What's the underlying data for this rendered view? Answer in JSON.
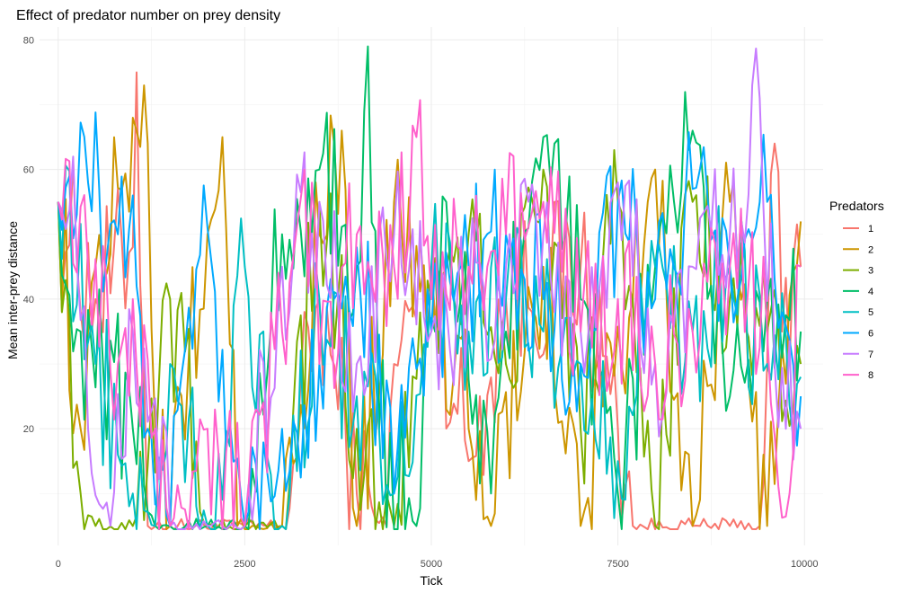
{
  "chart_data": {
    "type": "line",
    "title": "Effect of predator number on prey density",
    "xlabel": "Tick",
    "ylabel": "Mean inter-prey distance",
    "xlim": [
      -250,
      10250
    ],
    "ylim": [
      2,
      82
    ],
    "x_ticks": [
      0,
      2500,
      5000,
      7500,
      10000
    ],
    "x_tick_labels": [
      "0",
      "2500",
      "5000",
      "7500",
      "10000"
    ],
    "y_ticks": [
      20,
      40,
      60,
      80
    ],
    "y_tick_labels": [
      "20",
      "40",
      "60",
      "80"
    ],
    "grid": true,
    "legend": {
      "title": "Predators",
      "position": "right"
    },
    "x_sample_step": 50,
    "series": [
      {
        "name": "1",
        "color": "#F8766D",
        "segments": [
          [
            0,
            55
          ],
          [
            500,
            40
          ],
          [
            1000,
            48
          ],
          [
            1050,
            75
          ],
          [
            1200,
            5
          ],
          [
            1500,
            5
          ],
          [
            2500,
            5
          ],
          [
            3000,
            5
          ],
          [
            3500,
            40
          ],
          [
            4000,
            10
          ],
          [
            4400,
            5
          ],
          [
            4500,
            30
          ],
          [
            5000,
            45
          ],
          [
            5500,
            15
          ],
          [
            6000,
            40
          ],
          [
            7000,
            45
          ],
          [
            7500,
            20
          ],
          [
            7700,
            5
          ],
          [
            8500,
            5
          ],
          [
            9000,
            5
          ],
          [
            9400,
            5
          ],
          [
            9600,
            64
          ],
          [
            9700,
            35
          ],
          [
            9950,
            45
          ]
        ]
      },
      {
        "name": "2",
        "color": "#CD9600",
        "segments": [
          [
            0,
            55
          ],
          [
            300,
            20
          ],
          [
            500,
            45
          ],
          [
            1000,
            68
          ],
          [
            1200,
            64
          ],
          [
            1300,
            20
          ],
          [
            1500,
            5
          ],
          [
            2000,
            50
          ],
          [
            2200,
            65
          ],
          [
            2400,
            5
          ],
          [
            3000,
            5
          ],
          [
            3500,
            50
          ],
          [
            3800,
            66
          ],
          [
            4000,
            5
          ],
          [
            4500,
            55
          ],
          [
            5000,
            45
          ],
          [
            5500,
            20
          ],
          [
            5800,
            5
          ],
          [
            6500,
            45
          ],
          [
            7000,
            5
          ],
          [
            8000,
            60
          ],
          [
            8500,
            5
          ],
          [
            9000,
            55
          ],
          [
            9500,
            5
          ],
          [
            9950,
            52
          ]
        ]
      },
      {
        "name": "3",
        "color": "#7CAE00",
        "segments": [
          [
            0,
            55
          ],
          [
            300,
            10
          ],
          [
            500,
            5
          ],
          [
            1000,
            5
          ],
          [
            1500,
            40
          ],
          [
            2000,
            5
          ],
          [
            2500,
            5
          ],
          [
            3000,
            5
          ],
          [
            3500,
            55
          ],
          [
            4000,
            20
          ],
          [
            4500,
            5
          ],
          [
            5000,
            40
          ],
          [
            5500,
            50
          ],
          [
            6000,
            30
          ],
          [
            6500,
            60
          ],
          [
            7000,
            20
          ],
          [
            7500,
            55
          ],
          [
            8000,
            5
          ],
          [
            8500,
            55
          ],
          [
            9000,
            40
          ],
          [
            9500,
            35
          ],
          [
            9950,
            30
          ]
        ]
      },
      {
        "name": "4",
        "color": "#00BE67",
        "segments": [
          [
            0,
            55
          ],
          [
            300,
            35
          ],
          [
            600,
            30
          ],
          [
            1000,
            20
          ],
          [
            1300,
            5
          ],
          [
            2000,
            5
          ],
          [
            2500,
            5
          ],
          [
            3000,
            50
          ],
          [
            3500,
            60
          ],
          [
            4000,
            45
          ],
          [
            4150,
            79
          ],
          [
            4300,
            20
          ],
          [
            4800,
            5
          ],
          [
            5200,
            55
          ],
          [
            5800,
            10
          ],
          [
            6000,
            35
          ],
          [
            6500,
            65
          ],
          [
            7000,
            40
          ],
          [
            7500,
            10
          ],
          [
            8000,
            45
          ],
          [
            8500,
            66
          ],
          [
            9000,
            25
          ],
          [
            9500,
            40
          ],
          [
            9950,
            35
          ]
        ]
      },
      {
        "name": "5",
        "color": "#00BFC4",
        "segments": [
          [
            0,
            55
          ],
          [
            500,
            30
          ],
          [
            1000,
            10
          ],
          [
            1300,
            5
          ],
          [
            1500,
            30
          ],
          [
            2000,
            5
          ],
          [
            2500,
            45
          ],
          [
            3000,
            5
          ],
          [
            3500,
            40
          ],
          [
            4000,
            25
          ],
          [
            4500,
            10
          ],
          [
            5000,
            45
          ],
          [
            5500,
            35
          ],
          [
            6000,
            40
          ],
          [
            6500,
            35
          ],
          [
            7000,
            30
          ],
          [
            7500,
            15
          ],
          [
            8000,
            45
          ],
          [
            8500,
            35
          ],
          [
            9000,
            45
          ],
          [
            9500,
            30
          ],
          [
            9950,
            28
          ]
        ]
      },
      {
        "name": "6",
        "color": "#00A9FF",
        "segments": [
          [
            0,
            55
          ],
          [
            400,
            58
          ],
          [
            800,
            50
          ],
          [
            1000,
            56
          ],
          [
            1200,
            20
          ],
          [
            1500,
            5
          ],
          [
            2000,
            51
          ],
          [
            2500,
            5
          ],
          [
            3000,
            20
          ],
          [
            3500,
            30
          ],
          [
            4000,
            48
          ],
          [
            4500,
            10
          ],
          [
            5000,
            35
          ],
          [
            5500,
            45
          ],
          [
            6000,
            50
          ],
          [
            6500,
            40
          ],
          [
            7000,
            30
          ],
          [
            7500,
            55
          ],
          [
            8000,
            40
          ],
          [
            8500,
            57
          ],
          [
            9000,
            45
          ],
          [
            9500,
            55
          ],
          [
            9950,
            25
          ]
        ]
      },
      {
        "name": "7",
        "color": "#C77CFF",
        "segments": [
          [
            0,
            55
          ],
          [
            200,
            62
          ],
          [
            400,
            20
          ],
          [
            700,
            5
          ],
          [
            1000,
            35
          ],
          [
            1500,
            5
          ],
          [
            2000,
            5
          ],
          [
            2500,
            5
          ],
          [
            3000,
            45
          ],
          [
            3500,
            55
          ],
          [
            4000,
            30
          ],
          [
            4500,
            50
          ],
          [
            5000,
            35
          ],
          [
            5500,
            40
          ],
          [
            6000,
            45
          ],
          [
            6500,
            50
          ],
          [
            7000,
            35
          ],
          [
            7500,
            58
          ],
          [
            8000,
            30
          ],
          [
            8500,
            45
          ],
          [
            9000,
            50
          ],
          [
            9400,
            71
          ],
          [
            9600,
            30
          ],
          [
            9950,
            20
          ]
        ]
      },
      {
        "name": "8",
        "color": "#FF61CC",
        "segments": [
          [
            0,
            55
          ],
          [
            400,
            45
          ],
          [
            800,
            30
          ],
          [
            1000,
            40
          ],
          [
            1500,
            5
          ],
          [
            2000,
            20
          ],
          [
            2500,
            5
          ],
          [
            3000,
            35
          ],
          [
            3300,
            60
          ],
          [
            3500,
            30
          ],
          [
            4000,
            50
          ],
          [
            4500,
            45
          ],
          [
            4800,
            65
          ],
          [
            5000,
            40
          ],
          [
            5500,
            45
          ],
          [
            6000,
            50
          ],
          [
            6500,
            55
          ],
          [
            7000,
            35
          ],
          [
            7500,
            40
          ],
          [
            8000,
            30
          ],
          [
            8500,
            35
          ],
          [
            9000,
            45
          ],
          [
            9500,
            35
          ],
          [
            9800,
            10
          ],
          [
            9950,
            45
          ]
        ]
      }
    ]
  }
}
